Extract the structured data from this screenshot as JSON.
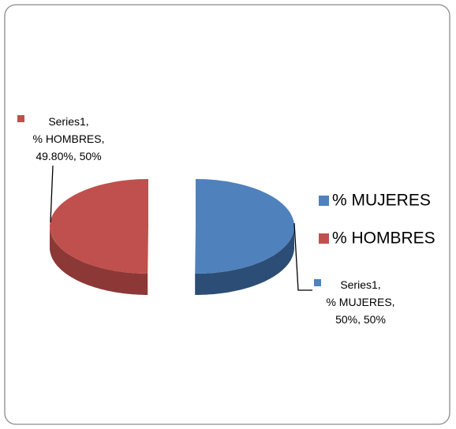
{
  "chart_data": {
    "type": "pie3d",
    "series_name": "Series1",
    "categories": [
      "% MUJERES",
      "% HOMBRES"
    ],
    "values": [
      50,
      49.8
    ],
    "value_labels": [
      "50%",
      "49.80%"
    ],
    "percent_labels": [
      "50%",
      "50%"
    ],
    "colors": [
      "#4f81bd",
      "#c0504d"
    ],
    "side_colors": [
      "#2c4d75",
      "#8c3836"
    ],
    "legend": "right"
  }
}
